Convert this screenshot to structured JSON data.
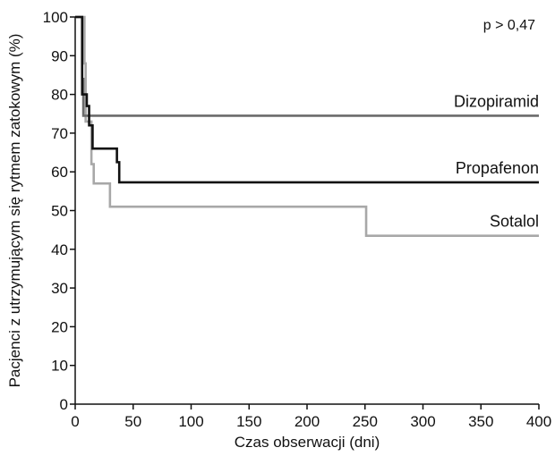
{
  "chart_data": {
    "type": "line",
    "step": true,
    "xlabel": "Czas obserwacji (dni)",
    "ylabel": "Pacjenci z utrzymującym się rytmem zatokowym (%)",
    "xlim": [
      0,
      400
    ],
    "ylim": [
      0,
      100
    ],
    "xticks": [
      0,
      50,
      100,
      150,
      200,
      250,
      300,
      350,
      400
    ],
    "yticks": [
      0,
      10,
      20,
      30,
      40,
      50,
      60,
      70,
      80,
      90,
      100
    ],
    "grid": false,
    "annotation": "p > 0,47",
    "series": [
      {
        "name": "Dizopiramid",
        "color": "#6b6b6b",
        "points": [
          [
            0,
            100
          ],
          [
            6,
            100
          ],
          [
            6,
            84
          ],
          [
            7,
            84
          ],
          [
            7,
            74.5
          ],
          [
            400,
            74.5
          ]
        ]
      },
      {
        "name": "Propafenon",
        "color": "#111111",
        "points": [
          [
            0,
            100
          ],
          [
            6,
            100
          ],
          [
            6,
            80
          ],
          [
            10,
            80
          ],
          [
            10,
            77
          ],
          [
            12,
            77
          ],
          [
            12,
            72
          ],
          [
            15,
            72
          ],
          [
            15,
            66
          ],
          [
            36,
            66
          ],
          [
            36,
            62.5
          ],
          [
            38,
            62.5
          ],
          [
            38,
            57.3
          ],
          [
            400,
            57.3
          ]
        ]
      },
      {
        "name": "Sotalol",
        "color": "#a8a8a8",
        "points": [
          [
            0,
            100
          ],
          [
            8,
            100
          ],
          [
            8,
            88
          ],
          [
            9,
            88
          ],
          [
            9,
            73
          ],
          [
            14,
            73
          ],
          [
            14,
            62
          ],
          [
            16,
            62
          ],
          [
            16,
            57
          ],
          [
            30,
            57
          ],
          [
            30,
            51
          ],
          [
            251,
            51
          ],
          [
            251,
            43.5
          ],
          [
            400,
            43.5
          ]
        ]
      }
    ]
  }
}
